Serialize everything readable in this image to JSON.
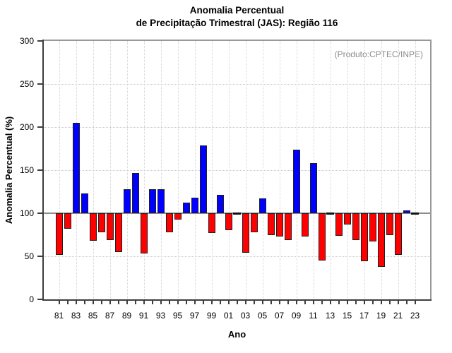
{
  "chart_data": {
    "type": "bar",
    "title": "Anomalia Percentual",
    "subtitle": "de Precipitação Trimestral (JAS): Região 116",
    "ylabel": "Anomalia Percentual (%)",
    "xlabel": "Ano",
    "annotation": "(Produto:CPTEC/INPE)",
    "baseline": 100,
    "ylim": [
      0,
      300
    ],
    "yticks": [
      0,
      50,
      100,
      150,
      200,
      250,
      300
    ],
    "xtick_label_step": 2,
    "legend": "none",
    "grid": "dotted horizontal every 50 units, dotted vertical every 2 years",
    "categories": [
      "81",
      "82",
      "83",
      "84",
      "85",
      "86",
      "87",
      "88",
      "89",
      "90",
      "91",
      "92",
      "93",
      "94",
      "95",
      "96",
      "97",
      "98",
      "99",
      "00",
      "01",
      "02",
      "03",
      "04",
      "05",
      "06",
      "07",
      "08",
      "09",
      "10",
      "11",
      "12",
      "13",
      "14",
      "15",
      "16",
      "17",
      "18",
      "19",
      "20",
      "21",
      "22",
      "23"
    ],
    "values": [
      52,
      82,
      205,
      123,
      68,
      78,
      69,
      55,
      128,
      147,
      53,
      128,
      128,
      78,
      93,
      112,
      118,
      179,
      77,
      121,
      80,
      100,
      54,
      78,
      117,
      75,
      73,
      69,
      174,
      73,
      158,
      45,
      100,
      74,
      87,
      69,
      44,
      67,
      38,
      75,
      52,
      103,
      100
    ],
    "colors": {
      "above_baseline": "#0000ff",
      "below_baseline": "#ff0000",
      "at_baseline": "#111111",
      "baseline_line": "#8c8c8c",
      "axis": "#3d3d3d",
      "top_right_border": "#999999",
      "grid": "#cccccc",
      "annotation_text": "#8c8c8c",
      "text": "#000000"
    }
  }
}
